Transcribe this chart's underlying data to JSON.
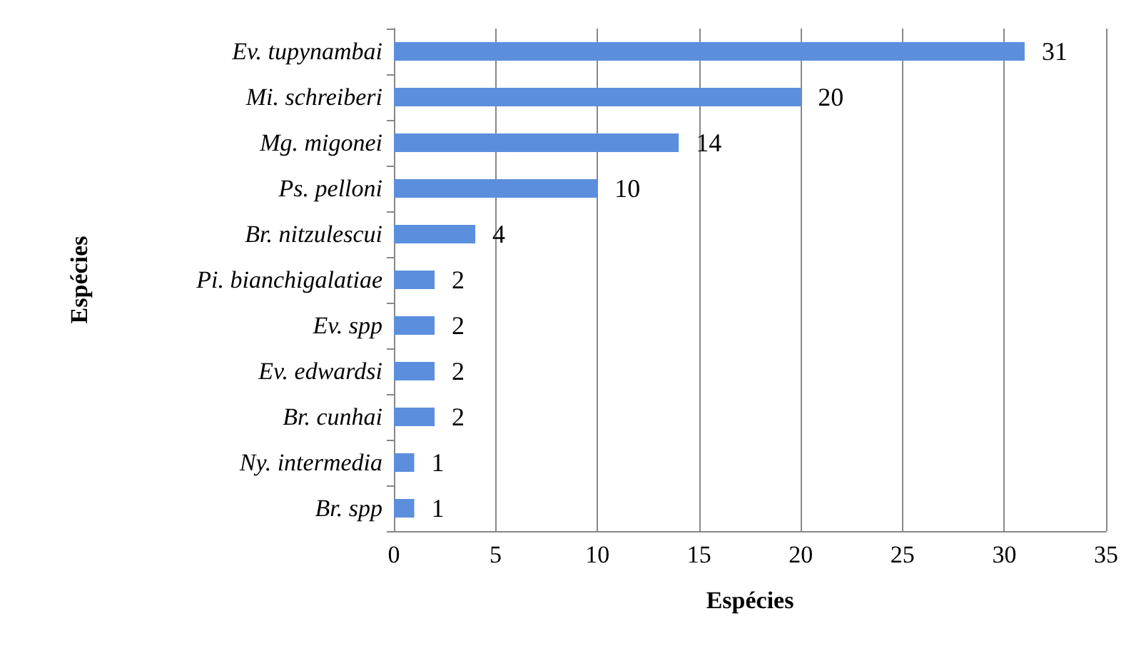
{
  "chart_data": {
    "type": "bar",
    "orientation": "horizontal",
    "xlabel": "Espécies",
    "ylabel": "Espécies",
    "categories": [
      "Ev. tupynambai",
      "Mi. schreiberi",
      "Mg. migonei",
      "Ps. pelloni",
      "Br. nitzulescui",
      "Pi. bianchigalatiae",
      "Ev. spp",
      "Ev. edwardsi",
      "Br. cunhai",
      "Ny. intermedia",
      "Br. spp"
    ],
    "values": [
      31,
      20,
      14,
      10,
      4,
      2,
      2,
      2,
      2,
      1,
      1
    ],
    "color": "#5b8fdd",
    "xlim": [
      0,
      35
    ],
    "xticks": [
      0,
      5,
      10,
      15,
      20,
      25,
      30,
      35
    ],
    "grid": "x",
    "data_labels": true
  }
}
